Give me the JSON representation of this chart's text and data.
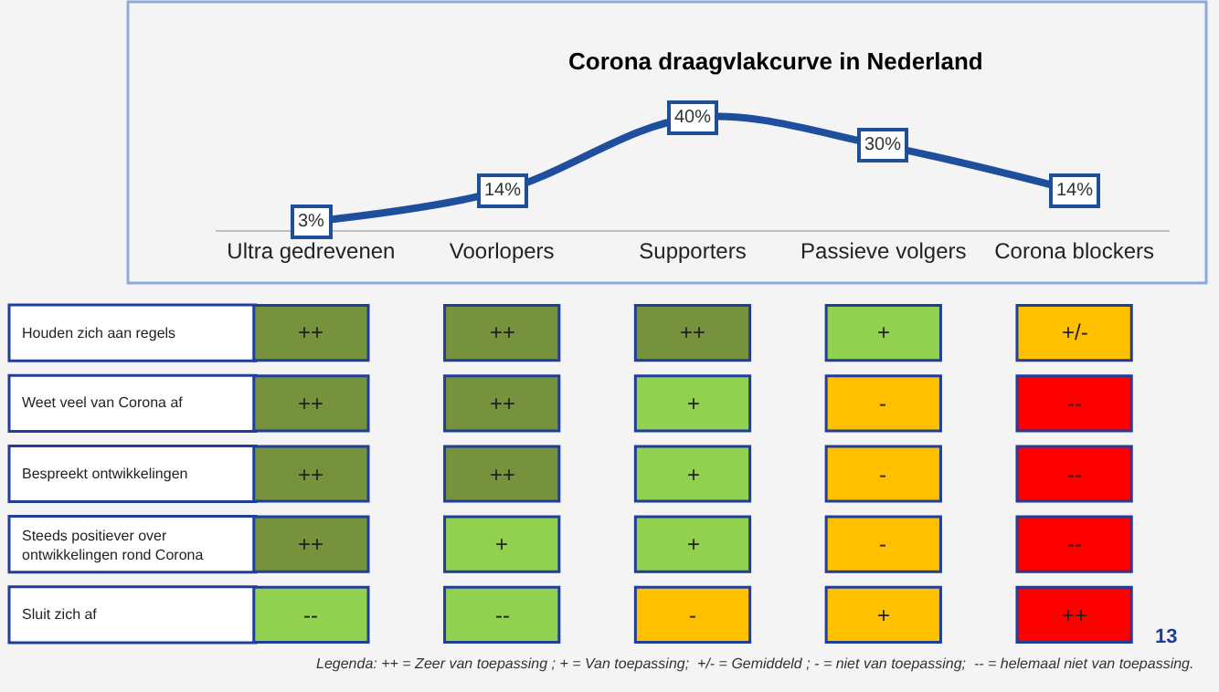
{
  "chart_data": [
    {
      "type": "line",
      "title": "Corona draagvlakcurve in Nederland",
      "categories": [
        "Ultra gedrevenen",
        "Voorlopers",
        "Supporters",
        "Passieve volgers",
        "Corona blockers"
      ],
      "series": [
        {
          "color": "#1f4e9c",
          "values": [
            3,
            14,
            40,
            30,
            14
          ],
          "value_labels": [
            "3%",
            "14%",
            "40%",
            "30%",
            "14%"
          ]
        }
      ],
      "tick_labels": "x",
      "grid": false,
      "line_style": "solid",
      "marker": "square"
    },
    {
      "type": "other",
      "categories": [
        null,
        null,
        null,
        null,
        null
      ],
      "y_categories": [
        "Houden zich aan regels",
        "Weet veel van Corona af",
        "Bespreekt ontwikkelingen",
        "Steeds positiever over ontwikkelingen rond Corona",
        "Sluit zich af"
      ],
      "cell_labels": [
        [
          "++",
          "++",
          "++",
          "+",
          "+/-"
        ],
        [
          "++",
          "++",
          "+",
          "-",
          "--"
        ],
        [
          "++",
          "++",
          "+",
          "-",
          "--"
        ],
        [
          "++",
          "+",
          "+",
          "-",
          "--"
        ],
        [
          "--",
          "--",
          "-",
          "+",
          "++"
        ]
      ],
      "colors": [
        [
          "#76923c",
          "#76923c",
          "#76923c",
          "#92d050",
          "#ffc000"
        ],
        [
          "#76923c",
          "#76923c",
          "#92d050",
          "#ffc000",
          "#ff0000"
        ],
        [
          "#76923c",
          "#76923c",
          "#92d050",
          "#ffc000",
          "#ff0000"
        ],
        [
          "#76923c",
          "#92d050",
          "#92d050",
          "#ffc000",
          "#ff0000"
        ],
        [
          "#92d050",
          "#92d050",
          "#ffc000",
          "#ffc000",
          "#ff0000"
        ]
      ],
      "annotations": [
        "Legenda: ++ = Zeer van toepassing ; + = Van toepassing;  +/- = Gemiddeld ; - = niet van toepassing;  -- = helemaal niet van toepassing.",
        "13"
      ]
    }
  ]
}
